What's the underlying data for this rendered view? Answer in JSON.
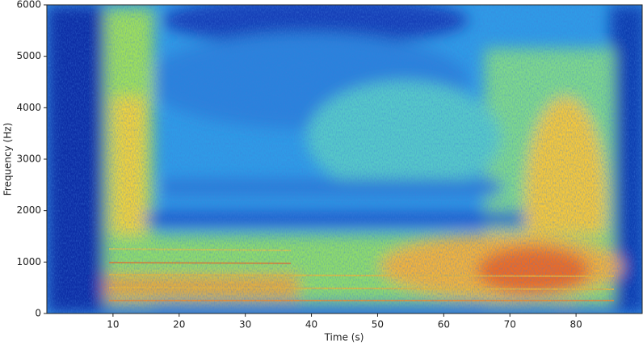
{
  "chart_data": {
    "type": "spectrogram",
    "x_label": "Time (s)",
    "y_label": "Frequency (Hz)",
    "xlim": [
      0,
      90
    ],
    "xticks": [
      10,
      20,
      30,
      40,
      50,
      60,
      70,
      80
    ],
    "ylim": [
      0,
      6000
    ],
    "yticks": [
      0,
      1000,
      2000,
      3000,
      4000,
      5000,
      6000
    ],
    "colormap": "jet"
  }
}
